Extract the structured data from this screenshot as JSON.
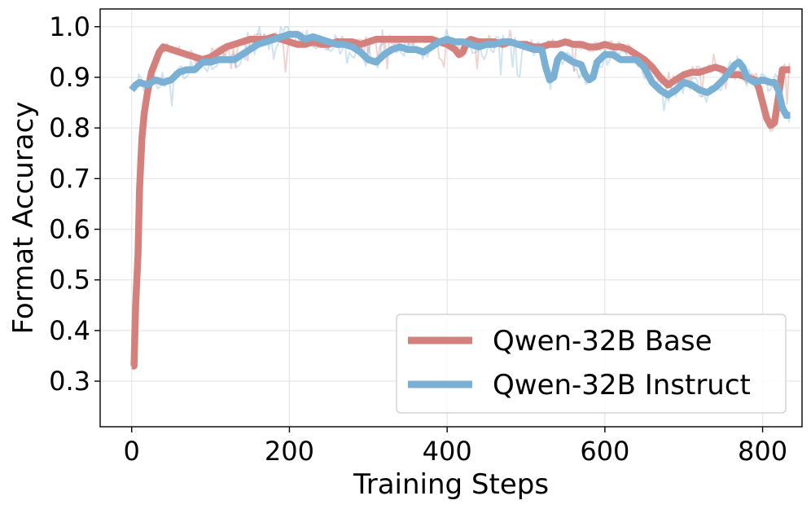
{
  "chart_data": {
    "type": "line",
    "title": "",
    "xlabel": "Training Steps",
    "ylabel": "Format Accuracy",
    "xlim": [
      -40,
      850
    ],
    "ylim": [
      0.21,
      1.035
    ],
    "xticks": [
      0,
      200,
      400,
      600,
      800
    ],
    "yticks": [
      0.3,
      0.4,
      0.5,
      0.6,
      0.7,
      0.8,
      0.9,
      1.0
    ],
    "xtick_labels": [
      "0",
      "200",
      "400",
      "600",
      "800"
    ],
    "ytick_labels": [
      "0.3",
      "0.4",
      "0.5",
      "0.6",
      "0.7",
      "0.8",
      "0.9",
      "1.0"
    ],
    "grid": true,
    "legend_position": "lower-right",
    "series": [
      {
        "name": "Qwen-32B Base",
        "color": "#d4807c",
        "smoothed": [
          [
            0,
            0.33
          ],
          [
            3,
            0.33
          ],
          [
            5,
            0.45
          ],
          [
            8,
            0.55
          ],
          [
            10,
            0.68
          ],
          [
            13,
            0.78
          ],
          [
            16,
            0.83
          ],
          [
            20,
            0.87
          ],
          [
            25,
            0.91
          ],
          [
            30,
            0.93
          ],
          [
            35,
            0.95
          ],
          [
            40,
            0.96
          ],
          [
            50,
            0.955
          ],
          [
            60,
            0.95
          ],
          [
            70,
            0.945
          ],
          [
            80,
            0.94
          ],
          [
            90,
            0.935
          ],
          [
            100,
            0.94
          ],
          [
            110,
            0.95
          ],
          [
            120,
            0.96
          ],
          [
            130,
            0.965
          ],
          [
            140,
            0.97
          ],
          [
            150,
            0.975
          ],
          [
            160,
            0.975
          ],
          [
            170,
            0.975
          ],
          [
            180,
            0.98
          ],
          [
            190,
            0.975
          ],
          [
            200,
            0.97
          ],
          [
            210,
            0.965
          ],
          [
            220,
            0.965
          ],
          [
            230,
            0.97
          ],
          [
            240,
            0.965
          ],
          [
            250,
            0.965
          ],
          [
            260,
            0.97
          ],
          [
            270,
            0.97
          ],
          [
            280,
            0.97
          ],
          [
            290,
            0.965
          ],
          [
            300,
            0.97
          ],
          [
            310,
            0.975
          ],
          [
            320,
            0.975
          ],
          [
            330,
            0.975
          ],
          [
            340,
            0.975
          ],
          [
            350,
            0.975
          ],
          [
            360,
            0.975
          ],
          [
            370,
            0.975
          ],
          [
            380,
            0.975
          ],
          [
            390,
            0.97
          ],
          [
            400,
            0.965
          ],
          [
            405,
            0.96
          ],
          [
            410,
            0.955
          ],
          [
            415,
            0.945
          ],
          [
            420,
            0.95
          ],
          [
            425,
            0.97
          ],
          [
            430,
            0.975
          ],
          [
            440,
            0.97
          ],
          [
            450,
            0.97
          ],
          [
            460,
            0.97
          ],
          [
            470,
            0.965
          ],
          [
            480,
            0.97
          ],
          [
            490,
            0.965
          ],
          [
            500,
            0.965
          ],
          [
            510,
            0.96
          ],
          [
            520,
            0.96
          ],
          [
            530,
            0.965
          ],
          [
            540,
            0.965
          ],
          [
            550,
            0.97
          ],
          [
            560,
            0.965
          ],
          [
            570,
            0.965
          ],
          [
            580,
            0.96
          ],
          [
            590,
            0.96
          ],
          [
            600,
            0.965
          ],
          [
            610,
            0.96
          ],
          [
            620,
            0.96
          ],
          [
            630,
            0.955
          ],
          [
            640,
            0.945
          ],
          [
            650,
            0.935
          ],
          [
            660,
            0.92
          ],
          [
            670,
            0.9
          ],
          [
            680,
            0.885
          ],
          [
            690,
            0.895
          ],
          [
            700,
            0.905
          ],
          [
            710,
            0.91
          ],
          [
            720,
            0.91
          ],
          [
            730,
            0.915
          ],
          [
            740,
            0.92
          ],
          [
            750,
            0.915
          ],
          [
            760,
            0.905
          ],
          [
            770,
            0.905
          ],
          [
            780,
            0.9
          ],
          [
            790,
            0.895
          ],
          [
            795,
            0.88
          ],
          [
            800,
            0.85
          ],
          [
            805,
            0.82
          ],
          [
            810,
            0.805
          ],
          [
            815,
            0.81
          ],
          [
            820,
            0.86
          ],
          [
            825,
            0.915
          ],
          [
            830,
            0.915
          ],
          [
            835,
            0.915
          ]
        ]
      },
      {
        "name": "Qwen-32B Instruct",
        "color": "#79b0d4",
        "smoothed": [
          [
            0,
            0.875
          ],
          [
            5,
            0.885
          ],
          [
            10,
            0.89
          ],
          [
            20,
            0.885
          ],
          [
            30,
            0.895
          ],
          [
            40,
            0.89
          ],
          [
            50,
            0.895
          ],
          [
            60,
            0.91
          ],
          [
            70,
            0.915
          ],
          [
            80,
            0.915
          ],
          [
            90,
            0.93
          ],
          [
            100,
            0.93
          ],
          [
            110,
            0.935
          ],
          [
            120,
            0.935
          ],
          [
            130,
            0.935
          ],
          [
            140,
            0.945
          ],
          [
            150,
            0.955
          ],
          [
            160,
            0.965
          ],
          [
            170,
            0.97
          ],
          [
            180,
            0.975
          ],
          [
            190,
            0.98
          ],
          [
            200,
            0.985
          ],
          [
            210,
            0.985
          ],
          [
            220,
            0.975
          ],
          [
            230,
            0.98
          ],
          [
            240,
            0.975
          ],
          [
            250,
            0.97
          ],
          [
            260,
            0.965
          ],
          [
            270,
            0.965
          ],
          [
            280,
            0.96
          ],
          [
            290,
            0.95
          ],
          [
            300,
            0.935
          ],
          [
            310,
            0.93
          ],
          [
            320,
            0.945
          ],
          [
            330,
            0.955
          ],
          [
            340,
            0.96
          ],
          [
            350,
            0.955
          ],
          [
            360,
            0.955
          ],
          [
            370,
            0.95
          ],
          [
            380,
            0.96
          ],
          [
            390,
            0.97
          ],
          [
            400,
            0.975
          ],
          [
            410,
            0.97
          ],
          [
            420,
            0.97
          ],
          [
            430,
            0.965
          ],
          [
            440,
            0.96
          ],
          [
            450,
            0.965
          ],
          [
            460,
            0.965
          ],
          [
            470,
            0.97
          ],
          [
            480,
            0.97
          ],
          [
            490,
            0.965
          ],
          [
            500,
            0.96
          ],
          [
            510,
            0.955
          ],
          [
            520,
            0.955
          ],
          [
            525,
            0.92
          ],
          [
            530,
            0.895
          ],
          [
            535,
            0.9
          ],
          [
            540,
            0.935
          ],
          [
            545,
            0.945
          ],
          [
            550,
            0.94
          ],
          [
            560,
            0.93
          ],
          [
            570,
            0.925
          ],
          [
            575,
            0.905
          ],
          [
            580,
            0.895
          ],
          [
            585,
            0.9
          ],
          [
            590,
            0.93
          ],
          [
            600,
            0.945
          ],
          [
            610,
            0.945
          ],
          [
            620,
            0.935
          ],
          [
            630,
            0.935
          ],
          [
            640,
            0.935
          ],
          [
            650,
            0.92
          ],
          [
            660,
            0.89
          ],
          [
            670,
            0.875
          ],
          [
            680,
            0.865
          ],
          [
            690,
            0.875
          ],
          [
            700,
            0.89
          ],
          [
            710,
            0.885
          ],
          [
            720,
            0.875
          ],
          [
            730,
            0.87
          ],
          [
            740,
            0.88
          ],
          [
            750,
            0.895
          ],
          [
            760,
            0.915
          ],
          [
            765,
            0.925
          ],
          [
            770,
            0.93
          ],
          [
            775,
            0.92
          ],
          [
            780,
            0.9
          ],
          [
            790,
            0.89
          ],
          [
            800,
            0.895
          ],
          [
            810,
            0.89
          ],
          [
            815,
            0.89
          ],
          [
            820,
            0.875
          ],
          [
            825,
            0.84
          ],
          [
            830,
            0.825
          ],
          [
            835,
            0.825
          ]
        ]
      }
    ]
  }
}
